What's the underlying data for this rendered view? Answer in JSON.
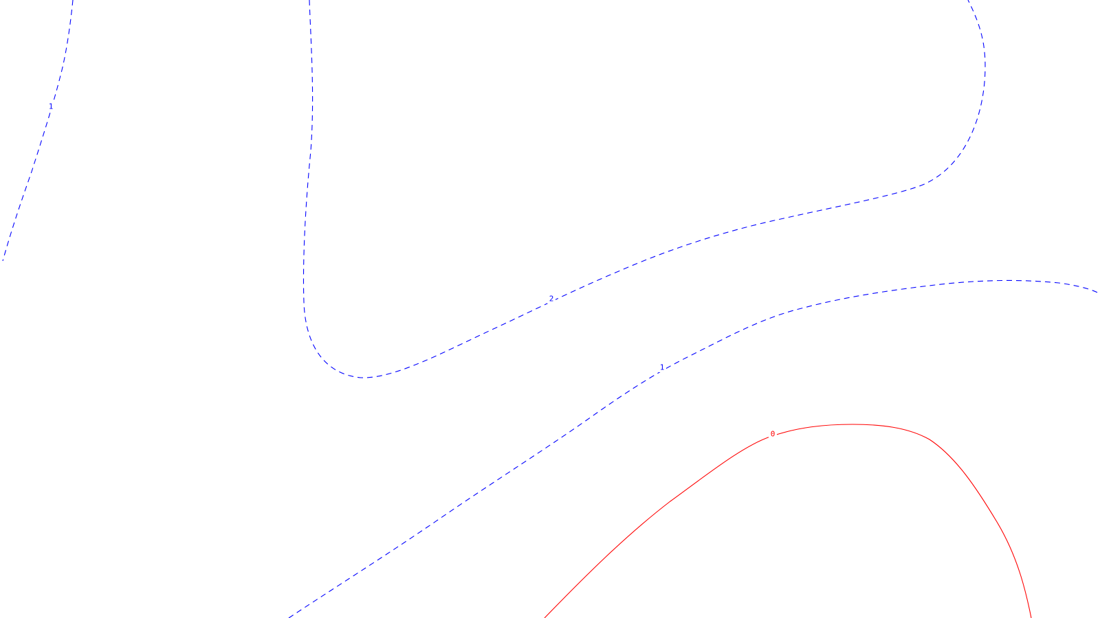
{
  "contours": [
    {
      "id": "c1a",
      "level": "1",
      "label": "1",
      "color": "#0000ff",
      "style": "dashed"
    },
    {
      "id": "c2",
      "level": "2",
      "label": "2",
      "color": "#0000ff",
      "style": "dashed"
    },
    {
      "id": "c1b",
      "level": "1",
      "label": "1",
      "color": "#0000ff",
      "style": "dashed"
    },
    {
      "id": "c0",
      "level": "0",
      "label": "0",
      "color": "#ff0000",
      "style": "solid"
    }
  ]
}
